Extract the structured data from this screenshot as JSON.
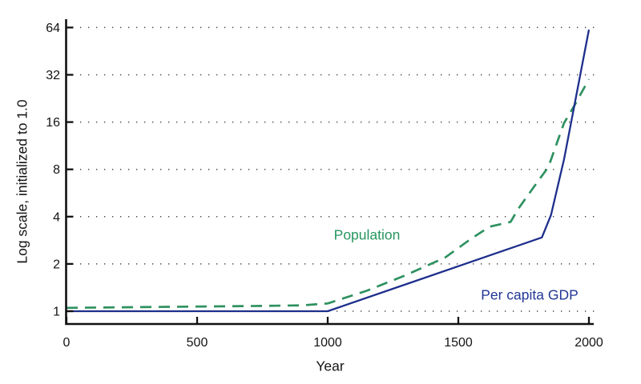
{
  "chart_data": {
    "type": "line",
    "title": "",
    "xlabel": "Year",
    "ylabel": "Log scale, initialized to 1.0",
    "x_ticks": [
      0,
      500,
      1000,
      1500,
      2000
    ],
    "y_ticks": [
      1,
      2,
      4,
      8,
      16,
      32,
      64
    ],
    "y_scale": "log2",
    "xlim": [
      0,
      2000
    ],
    "ylim": [
      1,
      70
    ],
    "grid": "dotted-horizontal",
    "legend": "inline-annotations",
    "series": [
      {
        "name": "Population",
        "color": "#2e9160",
        "line_style": "dashed",
        "points": [
          [
            0,
            1.05
          ],
          [
            250,
            1.06
          ],
          [
            500,
            1.07
          ],
          [
            750,
            1.08
          ],
          [
            900,
            1.09
          ],
          [
            1000,
            1.12
          ],
          [
            1150,
            1.35
          ],
          [
            1300,
            1.7
          ],
          [
            1450,
            2.2
          ],
          [
            1550,
            2.9
          ],
          [
            1620,
            3.45
          ],
          [
            1700,
            3.7
          ],
          [
            1730,
            4.5
          ],
          [
            1790,
            6.2
          ],
          [
            1845,
            8.3
          ],
          [
            1875,
            11.5
          ],
          [
            1905,
            15.8
          ],
          [
            1945,
            20.5
          ],
          [
            2000,
            30
          ]
        ]
      },
      {
        "name": "Per capita GDP",
        "color": "#1e2f8c",
        "line_style": "solid",
        "points": [
          [
            0,
            1.0
          ],
          [
            1000,
            1.0
          ],
          [
            1820,
            2.95
          ],
          [
            1855,
            4.1
          ],
          [
            1905,
            9.3
          ],
          [
            2000,
            62
          ]
        ]
      }
    ],
    "annotations": [
      {
        "text": "Population",
        "color": "#28965f",
        "anchor_year": 1150,
        "anchor_value": 3.05
      },
      {
        "text": "Per capita GDP",
        "color": "#233796",
        "anchor_year": 1773,
        "anchor_value": 1.27
      }
    ]
  }
}
